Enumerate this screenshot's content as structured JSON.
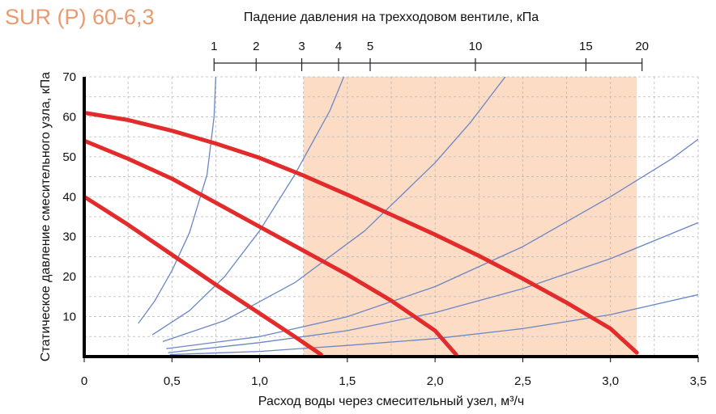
{
  "chart_data": {
    "type": "line",
    "title": "SUR (P) 60-6,3",
    "xlabel": "Расход воды через смесительный узел, м³/ч",
    "ylabel": "Статическое давление смесительного узла, кПа",
    "top_axis_label": "Падение давления на трехходовом вентиле, кПа",
    "xlim": [
      0,
      3.5
    ],
    "ylim": [
      0,
      70
    ],
    "x_ticks": [
      0,
      0.5,
      1.0,
      1.5,
      2.0,
      2.5,
      3.0,
      3.5
    ],
    "x_tick_labels": [
      "0",
      "0,5",
      "1,0",
      "1,5",
      "2,0",
      "2,5",
      "3,0",
      "3,5"
    ],
    "y_ticks": [
      10,
      20,
      30,
      40,
      50,
      60,
      70
    ],
    "y_tick_labels": [
      "10",
      "20",
      "30",
      "40",
      "50",
      "60",
      "70"
    ],
    "grid": true,
    "top_axis": {
      "ticks": [
        {
          "label": "1",
          "x": 0.74
        },
        {
          "label": "2",
          "x": 0.98
        },
        {
          "label": "3",
          "x": 1.24
        },
        {
          "label": "4",
          "x": 1.45
        },
        {
          "label": "5",
          "x": 1.63
        },
        {
          "label": "10",
          "x": 2.23
        },
        {
          "label": "15",
          "x": 2.86
        },
        {
          "label": "20",
          "x": 3.18
        }
      ]
    },
    "highlight_region": {
      "x": [
        1.25,
        3.15
      ],
      "color": "#fddcc6"
    },
    "series": [
      {
        "role": "pump",
        "color": "#e32b2b",
        "points": [
          [
            0,
            61
          ],
          [
            0.25,
            59.2
          ],
          [
            0.5,
            56.5
          ],
          [
            0.75,
            53.3
          ],
          [
            1.0,
            49.7
          ],
          [
            1.25,
            45.3
          ],
          [
            1.5,
            40.5
          ],
          [
            1.75,
            35.5
          ],
          [
            2.0,
            30.5
          ],
          [
            2.25,
            25.2
          ],
          [
            2.5,
            19.5
          ],
          [
            2.75,
            13.5
          ],
          [
            3.0,
            7.0
          ],
          [
            3.15,
            1.0
          ]
        ]
      },
      {
        "role": "pump",
        "color": "#e32b2b",
        "points": [
          [
            0,
            54
          ],
          [
            0.25,
            49.5
          ],
          [
            0.5,
            44.5
          ],
          [
            0.75,
            38.5
          ],
          [
            1.0,
            32.5
          ],
          [
            1.25,
            26.5
          ],
          [
            1.5,
            20.5
          ],
          [
            1.75,
            14.0
          ],
          [
            2.0,
            6.5
          ],
          [
            2.12,
            0.5
          ]
        ]
      },
      {
        "role": "pump",
        "color": "#e32b2b",
        "points": [
          [
            0,
            40
          ],
          [
            0.25,
            33.0
          ],
          [
            0.5,
            25.5
          ],
          [
            0.75,
            18.0
          ],
          [
            1.0,
            10.8
          ],
          [
            1.2,
            5.0
          ],
          [
            1.35,
            0.5
          ]
        ]
      },
      {
        "role": "system",
        "color": "#6b86c4",
        "points": [
          [
            0.31,
            8.4
          ],
          [
            0.4,
            13.8
          ],
          [
            0.5,
            21.5
          ],
          [
            0.6,
            31.0
          ],
          [
            0.7,
            45.5
          ],
          [
            0.74,
            60.0
          ],
          [
            0.75,
            70.0
          ]
        ]
      },
      {
        "role": "system",
        "color": "#6b86c4",
        "points": [
          [
            0.39,
            5.5
          ],
          [
            0.6,
            11.5
          ],
          [
            0.8,
            20.0
          ],
          [
            1.0,
            31.5
          ],
          [
            1.2,
            45.5
          ],
          [
            1.4,
            61.5
          ],
          [
            1.48,
            70.0
          ]
        ]
      },
      {
        "role": "system",
        "color": "#6b86c4",
        "points": [
          [
            0.45,
            3.8
          ],
          [
            0.8,
            9.0
          ],
          [
            1.2,
            18.5
          ],
          [
            1.6,
            31.5
          ],
          [
            2.0,
            48.5
          ],
          [
            2.2,
            58.5
          ],
          [
            2.4,
            70.0
          ]
        ]
      },
      {
        "role": "system",
        "color": "#6b86c4",
        "points": [
          [
            0.47,
            2.0
          ],
          [
            1.0,
            5.0
          ],
          [
            1.5,
            10.0
          ],
          [
            2.0,
            17.5
          ],
          [
            2.5,
            27.5
          ],
          [
            3.0,
            40.0
          ],
          [
            3.35,
            49.5
          ],
          [
            3.55,
            56.0
          ]
        ]
      },
      {
        "role": "system",
        "color": "#6b86c4",
        "points": [
          [
            0.48,
            1.0
          ],
          [
            1.0,
            3.5
          ],
          [
            1.5,
            6.5
          ],
          [
            2.0,
            11.0
          ],
          [
            2.5,
            17.0
          ],
          [
            3.0,
            24.5
          ],
          [
            3.5,
            33.5
          ],
          [
            3.6,
            35.5
          ]
        ]
      },
      {
        "role": "system",
        "color": "#6b86c4",
        "points": [
          [
            0.49,
            0.5
          ],
          [
            1.0,
            1.3
          ],
          [
            1.5,
            2.8
          ],
          [
            2.0,
            4.5
          ],
          [
            2.5,
            7.0
          ],
          [
            3.0,
            10.5
          ],
          [
            3.5,
            15.5
          ],
          [
            3.6,
            16.5
          ]
        ]
      }
    ]
  }
}
